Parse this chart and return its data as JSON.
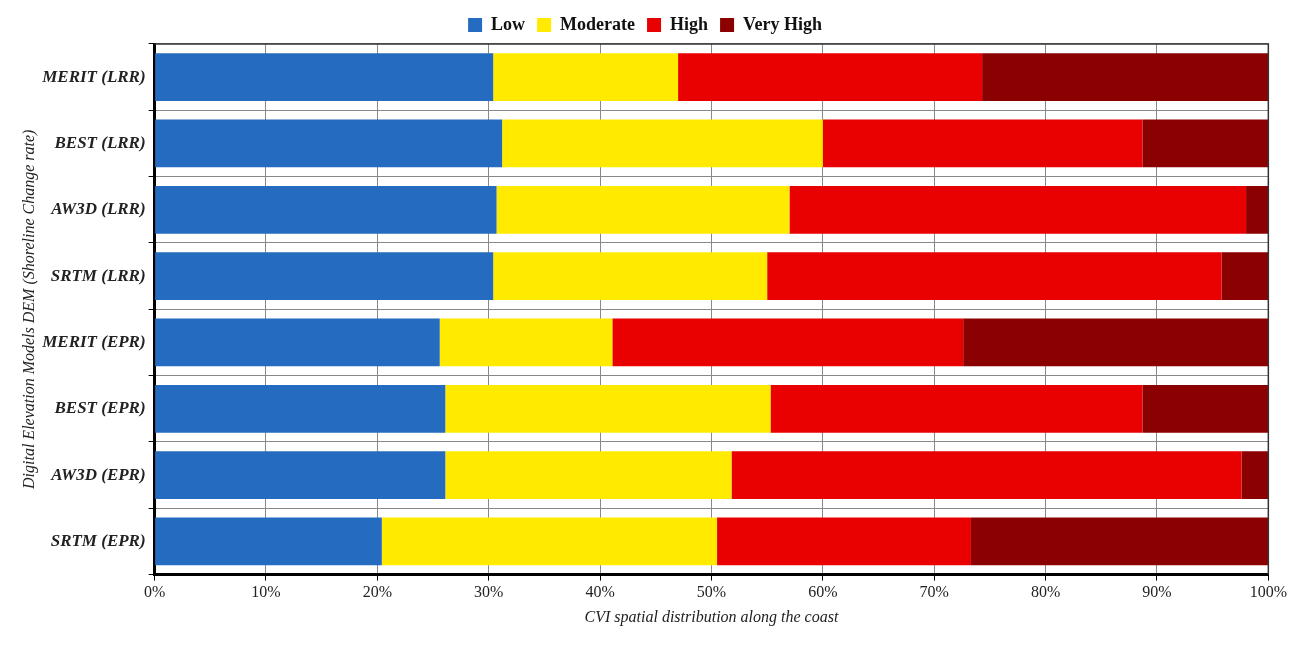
{
  "chart_data": {
    "type": "bar",
    "orientation": "horizontal",
    "stacked": true,
    "categories": [
      "MERIT (LRR)",
      "BEST (LRR)",
      "AW3D (LRR)",
      "SRTM (LRR)",
      "MERIT (EPR)",
      "BEST (EPR)",
      "AW3D (EPR)",
      "SRTM (EPR)"
    ],
    "series": [
      {
        "name": "Low",
        "color": "#256bbf",
        "values": [
          30.4,
          31.2,
          30.7,
          30.4,
          25.6,
          26.1,
          26.1,
          20.4
        ]
      },
      {
        "name": "Moderate",
        "color": "#ffea00",
        "values": [
          16.6,
          28.8,
          26.3,
          24.6,
          15.5,
          29.2,
          25.7,
          30.1
        ]
      },
      {
        "name": "High",
        "color": "#e90000",
        "values": [
          27.3,
          28.7,
          41.0,
          40.8,
          31.5,
          33.4,
          45.8,
          22.8
        ]
      },
      {
        "name": "Very High",
        "color": "#8b0000",
        "values": [
          25.7,
          11.3,
          2.0,
          4.2,
          27.4,
          11.3,
          2.4,
          26.7
        ]
      }
    ],
    "xlim": [
      0,
      100
    ],
    "xticks": [
      {
        "value": 0,
        "label": "0%"
      },
      {
        "value": 10,
        "label": "10%"
      },
      {
        "value": 20,
        "label": "20%"
      },
      {
        "value": 30,
        "label": "30%"
      },
      {
        "value": 40,
        "label": "40%"
      },
      {
        "value": 50,
        "label": "50%"
      },
      {
        "value": 60,
        "label": "60%"
      },
      {
        "value": 70,
        "label": "70%"
      },
      {
        "value": 80,
        "label": "80%"
      },
      {
        "value": 90,
        "label": "90%"
      },
      {
        "value": 100,
        "label": "100%"
      }
    ],
    "xlabel": "CVI spatial distribution along the coast",
    "ylabel": "Digital Elevation Models DEM (Shoreline Change rate)",
    "grid": true,
    "legend": "top"
  }
}
